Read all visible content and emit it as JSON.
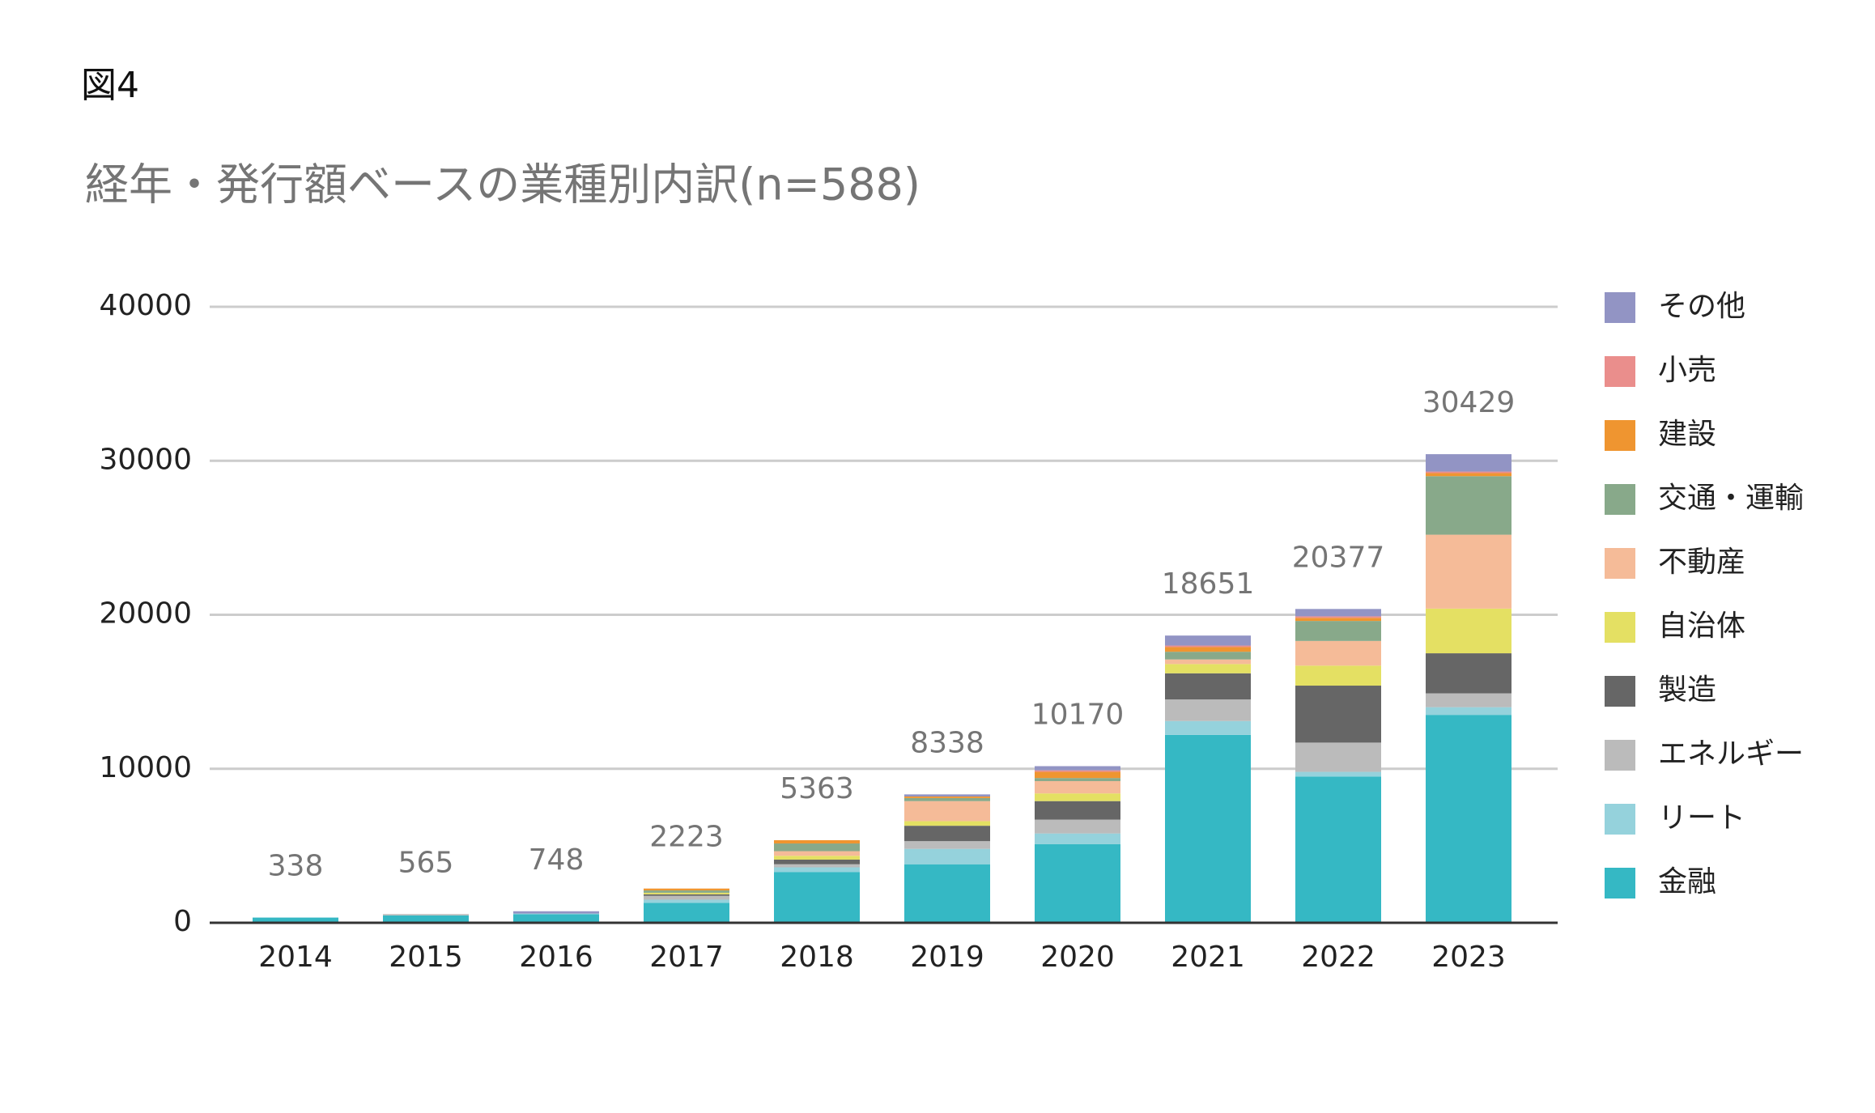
{
  "chart_data": {
    "type": "stacked_bar",
    "figure_label": "図4",
    "title": "経年・発行額ベースの業種別内訳(n=588)",
    "categories": [
      "2014",
      "2015",
      "2016",
      "2017",
      "2018",
      "2019",
      "2020",
      "2021",
      "2022",
      "2023"
    ],
    "series": [
      {
        "name": "金融",
        "color": "#35b8c4",
        "values": [
          338,
          480,
          550,
          1300,
          3300,
          3800,
          5100,
          12200,
          9500,
          13500
        ]
      },
      {
        "name": "リート",
        "color": "#95d2dc",
        "values": [
          0,
          0,
          50,
          200,
          300,
          1000,
          700,
          900,
          300,
          500
        ]
      },
      {
        "name": "エネルギー",
        "color": "#bbbbbb",
        "values": [
          0,
          85,
          0,
          250,
          200,
          500,
          900,
          1400,
          1900,
          900
        ]
      },
      {
        "name": "製造",
        "color": "#666666",
        "values": [
          0,
          0,
          0,
          100,
          300,
          1000,
          1200,
          1700,
          3700,
          2600
        ]
      },
      {
        "name": "自治体",
        "color": "#e4e063",
        "values": [
          0,
          0,
          0,
          100,
          250,
          300,
          500,
          600,
          1300,
          2900
        ]
      },
      {
        "name": "不動産",
        "color": "#f5bb98",
        "values": [
          0,
          0,
          0,
          0,
          300,
          1300,
          800,
          300,
          1600,
          4800
        ]
      },
      {
        "name": "交通・運輸",
        "color": "#88a98a",
        "values": [
          0,
          0,
          0,
          150,
          500,
          200,
          200,
          500,
          1300,
          3800
        ]
      },
      {
        "name": "建設",
        "color": "#ef9530",
        "values": [
          0,
          0,
          0,
          123,
          213,
          100,
          400,
          300,
          200,
          200
        ]
      },
      {
        "name": "小売",
        "color": "#ea8e8c",
        "values": [
          0,
          0,
          0,
          0,
          0,
          0,
          100,
          100,
          100,
          100
        ]
      },
      {
        "name": "その他",
        "color": "#9294c4",
        "values": [
          0,
          0,
          148,
          0,
          0,
          138,
          270,
          651,
          477,
          1129
        ]
      }
    ],
    "totals": [
      338,
      565,
      748,
      2223,
      5363,
      8338,
      10170,
      18651,
      20377,
      30429
    ],
    "ylim": [
      0,
      40000
    ],
    "yticks": [
      0,
      10000,
      20000,
      30000,
      40000
    ],
    "grid": true,
    "legend": "right"
  }
}
